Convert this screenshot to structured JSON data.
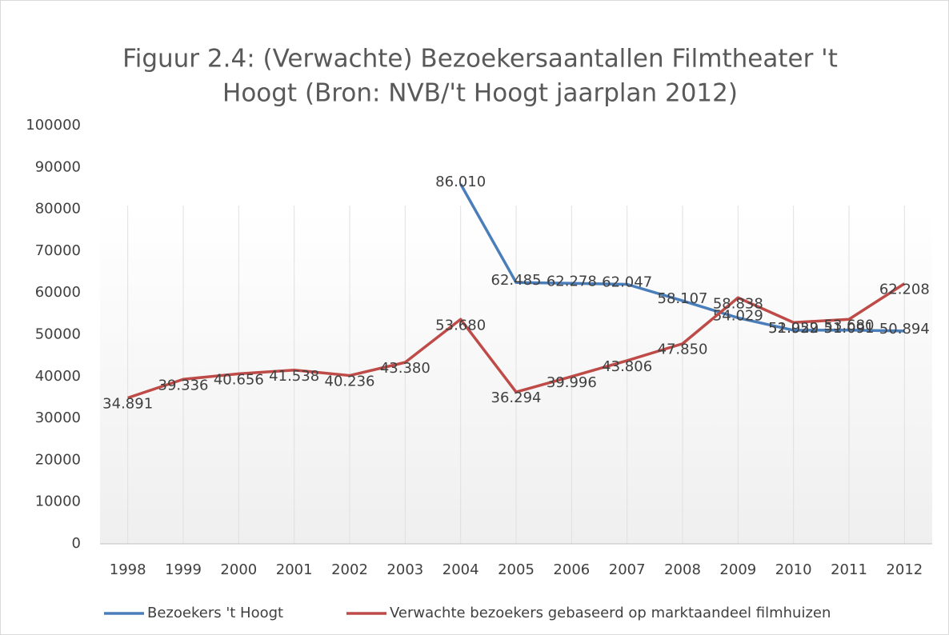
{
  "chart_data": {
    "type": "line",
    "title": "Figuur 2.4: (Verwachte) Bezoekersaantallen Filmtheater 't",
    "subtitle": "Hoogt (Bron: NVB/'t Hoogt jaarplan 2012)",
    "categories": [
      "1998",
      "1999",
      "2000",
      "2001",
      "2002",
      "2003",
      "2004",
      "2005",
      "2006",
      "2007",
      "2008",
      "2009",
      "2010",
      "2011",
      "2012"
    ],
    "series": [
      {
        "name": "Bezoekers 't Hoogt",
        "color": "#4a7ebb",
        "values": [
          null,
          null,
          null,
          null,
          null,
          null,
          86010,
          62485,
          62278,
          62047,
          58107,
          54029,
          51059,
          51091,
          50894
        ],
        "value_labels": [
          null,
          null,
          null,
          null,
          null,
          null,
          "86.010",
          "62.485",
          "62.278",
          "62.047",
          "58.107",
          "54.029",
          "51.059",
          "51.091",
          "50.894"
        ]
      },
      {
        "name": "Verwachte bezoekers gebaseerd op marktaandeel filmhuizen",
        "color": "#be4b48",
        "values": [
          34891,
          39336,
          40656,
          41538,
          40236,
          43380,
          53680,
          36294,
          39996,
          43806,
          47850,
          58838,
          52922,
          53680,
          62208
        ],
        "value_labels": [
          "34.891",
          "39.336",
          "40.656",
          "41.538",
          "40.236",
          "43.380",
          "53.680",
          "36.294",
          "39.996",
          "43.806",
          "47.850",
          "58.838",
          "52.922",
          "53.680",
          "62.208"
        ]
      }
    ],
    "ylim": [
      0,
      100000
    ],
    "yticks": [
      0,
      10000,
      20000,
      30000,
      40000,
      50000,
      60000,
      70000,
      80000,
      90000,
      100000
    ],
    "grid": false,
    "legend": "bottom"
  }
}
